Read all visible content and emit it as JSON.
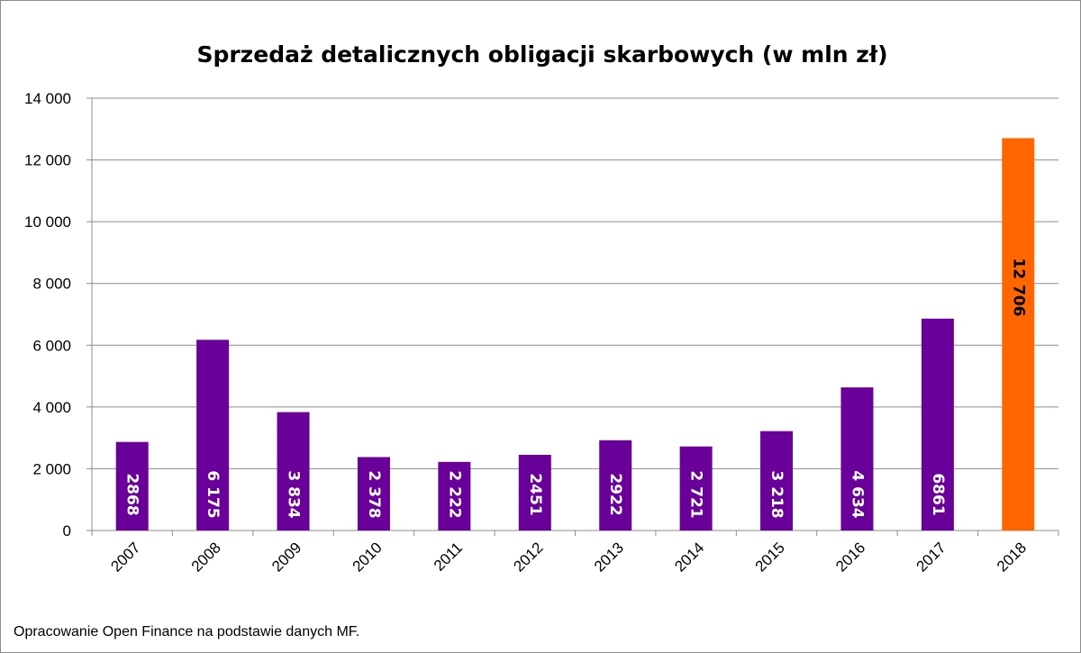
{
  "chart_data": {
    "type": "bar",
    "title": "Sprzedaż detalicznych obligacji skarbowych (w mln zł)",
    "xlabel": "",
    "ylabel": "",
    "categories": [
      "2007",
      "2008",
      "2009",
      "2010",
      "2011",
      "2012",
      "2013",
      "2014",
      "2015",
      "2016",
      "2017",
      "2018"
    ],
    "values": [
      2868,
      6175,
      3834,
      2378,
      2222,
      2451,
      2922,
      2721,
      3218,
      4634,
      6861,
      12706
    ],
    "data_labels": [
      "2868",
      "6 175",
      "3 834",
      "2 378",
      "2 222",
      "2451",
      "2922",
      "2 721",
      "3 218",
      "4 634",
      "6861",
      "12 706"
    ],
    "ylim": [
      0,
      14000
    ],
    "yticks": [
      0,
      2000,
      4000,
      6000,
      8000,
      10000,
      12000,
      14000
    ],
    "ytick_labels": [
      "0",
      "2 000",
      "4 000",
      "6 000",
      "8 000",
      "10 000",
      "12 000",
      "14 000"
    ],
    "grid": true,
    "legend": "none",
    "colors": {
      "default_bar": "#6a0099",
      "highlight_bar": "#ff6600",
      "default_label": "#ffffff",
      "highlight_label": "#000000",
      "gridline": "#8c8c8c"
    },
    "highlight_index": 11
  },
  "footer": {
    "source_note": "Opracowanie Open Finance na podstawie danych MF."
  }
}
